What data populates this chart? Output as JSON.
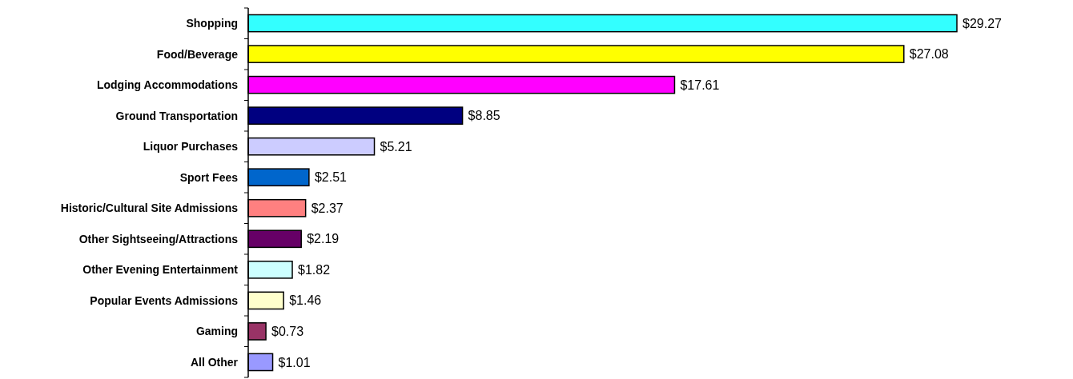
{
  "chart_data": {
    "type": "bar",
    "orientation": "horizontal",
    "categories": [
      "Shopping",
      "Food/Beverage",
      "Lodging Accommodations",
      "Ground Transportation",
      "Liquor Purchases",
      "Sport Fees",
      "Historic/Cultural Site Admissions",
      "Other Sightseeing/Attractions",
      "Other Evening Entertainment",
      "Popular Events Admissions",
      "Gaming",
      "All Other"
    ],
    "values": [
      29.27,
      27.08,
      17.61,
      8.85,
      5.21,
      2.51,
      2.37,
      2.19,
      1.82,
      1.46,
      0.73,
      1.01
    ],
    "value_labels": [
      "$29.27",
      "$27.08",
      "$17.61",
      "$8.85",
      "$5.21",
      "$2.51",
      "$2.37",
      "$2.19",
      "$1.82",
      "$1.46",
      "$0.73",
      "$1.01"
    ],
    "colors": [
      "#33ffff",
      "#ffff00",
      "#ff00ff",
      "#000080",
      "#ccccff",
      "#0066cc",
      "#ff8080",
      "#660066",
      "#ccffff",
      "#ffffcc",
      "#993366",
      "#9999ff"
    ]
  }
}
